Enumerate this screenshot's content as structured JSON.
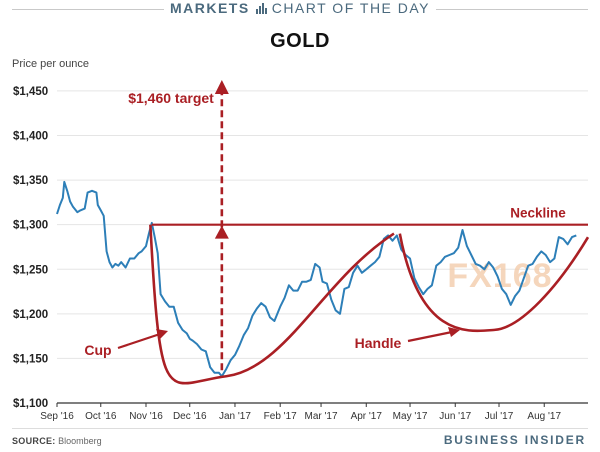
{
  "header": {
    "left": "MARKETS",
    "right": "CHART OF THE DAY"
  },
  "footer": {
    "source_label": "SOURCE:",
    "source": "Bloomberg",
    "brand": "BUSINESS INSIDER"
  },
  "watermark": "FX168",
  "colors": {
    "price_line": "#2d7fb8",
    "annotation": "#aa1f24",
    "header": "#4b6a7e",
    "grid": "#e5e5e5"
  },
  "chart_data": {
    "type": "line",
    "title": "GOLD",
    "ylabel": "Price per ounce",
    "xlabel": "",
    "ylim": [
      1100,
      1460
    ],
    "yticks": [
      1100,
      1150,
      1200,
      1250,
      1300,
      1350,
      1400,
      1450
    ],
    "ytick_labels": [
      "$1,100",
      "$1,150",
      "$1,200",
      "$1,250",
      "$1,300",
      "$1,350",
      "$1,400",
      "$1,450"
    ],
    "xlim": [
      "2016-09-01",
      "2017-08-31"
    ],
    "xticks": [
      "2016-09-01",
      "2016-10-01",
      "2016-11-01",
      "2016-12-01",
      "2017-01-01",
      "2017-02-01",
      "2017-03-01",
      "2017-04-01",
      "2017-05-01",
      "2017-06-01",
      "2017-07-01",
      "2017-08-01"
    ],
    "xtick_labels": [
      "Sep '16",
      "Oct '16",
      "Nov '16",
      "Dec '16",
      "Jan '17",
      "Feb '17",
      "Mar '17",
      "Apr '17",
      "May '17",
      "Jun '17",
      "Jul '17",
      "Aug '17"
    ],
    "grid": true,
    "series": [
      {
        "values": [
          [
            "2016-09-01",
            1312
          ],
          [
            "2016-09-03",
            1322
          ],
          [
            "2016-09-05",
            1330
          ],
          [
            "2016-09-06",
            1348
          ],
          [
            "2016-09-08",
            1338
          ],
          [
            "2016-09-10",
            1326
          ],
          [
            "2016-09-12",
            1320
          ],
          [
            "2016-09-15",
            1314
          ],
          [
            "2016-09-17",
            1316
          ],
          [
            "2016-09-20",
            1318
          ],
          [
            "2016-09-22",
            1336
          ],
          [
            "2016-09-25",
            1338
          ],
          [
            "2016-09-28",
            1336
          ],
          [
            "2016-09-29",
            1322
          ],
          [
            "2016-10-01",
            1316
          ],
          [
            "2016-10-03",
            1310
          ],
          [
            "2016-10-05",
            1270
          ],
          [
            "2016-10-07",
            1258
          ],
          [
            "2016-10-09",
            1252
          ],
          [
            "2016-10-11",
            1256
          ],
          [
            "2016-10-13",
            1254
          ],
          [
            "2016-10-15",
            1258
          ],
          [
            "2016-10-18",
            1252
          ],
          [
            "2016-10-21",
            1262
          ],
          [
            "2016-10-24",
            1262
          ],
          [
            "2016-10-27",
            1268
          ],
          [
            "2016-10-29",
            1270
          ],
          [
            "2016-11-01",
            1276
          ],
          [
            "2016-11-03",
            1290
          ],
          [
            "2016-11-05",
            1302
          ],
          [
            "2016-11-07",
            1286
          ],
          [
            "2016-11-09",
            1268
          ],
          [
            "2016-11-11",
            1222
          ],
          [
            "2016-11-14",
            1214
          ],
          [
            "2016-11-17",
            1208
          ],
          [
            "2016-11-20",
            1208
          ],
          [
            "2016-11-23",
            1190
          ],
          [
            "2016-11-26",
            1182
          ],
          [
            "2016-11-29",
            1178
          ],
          [
            "2016-12-01",
            1172
          ],
          [
            "2016-12-03",
            1170
          ],
          [
            "2016-12-06",
            1166
          ],
          [
            "2016-12-09",
            1160
          ],
          [
            "2016-12-12",
            1158
          ],
          [
            "2016-12-15",
            1140
          ],
          [
            "2016-12-18",
            1134
          ],
          [
            "2016-12-21",
            1134
          ],
          [
            "2016-12-23",
            1130
          ],
          [
            "2016-12-26",
            1138
          ],
          [
            "2016-12-29",
            1148
          ],
          [
            "2017-01-01",
            1154
          ],
          [
            "2017-01-04",
            1164
          ],
          [
            "2017-01-07",
            1176
          ],
          [
            "2017-01-10",
            1184
          ],
          [
            "2017-01-13",
            1198
          ],
          [
            "2017-01-16",
            1206
          ],
          [
            "2017-01-19",
            1212
          ],
          [
            "2017-01-22",
            1208
          ],
          [
            "2017-01-25",
            1196
          ],
          [
            "2017-01-28",
            1192
          ],
          [
            "2017-02-01",
            1208
          ],
          [
            "2017-02-04",
            1218
          ],
          [
            "2017-02-07",
            1232
          ],
          [
            "2017-02-10",
            1226
          ],
          [
            "2017-02-13",
            1226
          ],
          [
            "2017-02-16",
            1236
          ],
          [
            "2017-02-19",
            1236
          ],
          [
            "2017-02-22",
            1238
          ],
          [
            "2017-02-25",
            1256
          ],
          [
            "2017-02-28",
            1252
          ],
          [
            "2017-03-02",
            1236
          ],
          [
            "2017-03-05",
            1234
          ],
          [
            "2017-03-08",
            1216
          ],
          [
            "2017-03-11",
            1204
          ],
          [
            "2017-03-14",
            1200
          ],
          [
            "2017-03-17",
            1228
          ],
          [
            "2017-03-20",
            1230
          ],
          [
            "2017-03-23",
            1246
          ],
          [
            "2017-03-26",
            1254
          ],
          [
            "2017-03-29",
            1246
          ],
          [
            "2017-04-01",
            1250
          ],
          [
            "2017-04-04",
            1254
          ],
          [
            "2017-04-07",
            1258
          ],
          [
            "2017-04-10",
            1264
          ],
          [
            "2017-04-13",
            1284
          ],
          [
            "2017-04-16",
            1288
          ],
          [
            "2017-04-19",
            1282
          ],
          [
            "2017-04-22",
            1288
          ],
          [
            "2017-04-25",
            1272
          ],
          [
            "2017-04-28",
            1266
          ],
          [
            "2017-05-01",
            1262
          ],
          [
            "2017-05-04",
            1240
          ],
          [
            "2017-05-07",
            1230
          ],
          [
            "2017-05-10",
            1222
          ],
          [
            "2017-05-13",
            1228
          ],
          [
            "2017-05-16",
            1232
          ],
          [
            "2017-05-19",
            1254
          ],
          [
            "2017-05-22",
            1258
          ],
          [
            "2017-05-25",
            1264
          ],
          [
            "2017-05-28",
            1266
          ],
          [
            "2017-05-31",
            1268
          ],
          [
            "2017-06-03",
            1274
          ],
          [
            "2017-06-06",
            1294
          ],
          [
            "2017-06-09",
            1276
          ],
          [
            "2017-06-12",
            1266
          ],
          [
            "2017-06-15",
            1256
          ],
          [
            "2017-06-18",
            1254
          ],
          [
            "2017-06-21",
            1250
          ],
          [
            "2017-06-24",
            1258
          ],
          [
            "2017-06-27",
            1252
          ],
          [
            "2017-06-30",
            1242
          ],
          [
            "2017-07-03",
            1228
          ],
          [
            "2017-07-06",
            1222
          ],
          [
            "2017-07-09",
            1210
          ],
          [
            "2017-07-12",
            1220
          ],
          [
            "2017-07-15",
            1226
          ],
          [
            "2017-07-18",
            1240
          ],
          [
            "2017-07-21",
            1254
          ],
          [
            "2017-07-24",
            1256
          ],
          [
            "2017-07-27",
            1264
          ],
          [
            "2017-07-30",
            1270
          ],
          [
            "2017-08-02",
            1266
          ],
          [
            "2017-08-05",
            1258
          ],
          [
            "2017-08-08",
            1262
          ],
          [
            "2017-08-11",
            1286
          ],
          [
            "2017-08-14",
            1284
          ],
          [
            "2017-08-17",
            1278
          ],
          [
            "2017-08-20",
            1286
          ],
          [
            "2017-08-23",
            1288
          ]
        ]
      }
    ],
    "annotations": {
      "neckline": {
        "label": "Neckline",
        "value": 1300,
        "from": "2016-11-05",
        "to": "2017-08-31"
      },
      "target": {
        "label": "$1,460 target",
        "date": "2016-12-23",
        "from_value": 1130,
        "to_value": 1460
      },
      "cup": {
        "label": "Cup"
      },
      "handle": {
        "label": "Handle"
      }
    }
  }
}
